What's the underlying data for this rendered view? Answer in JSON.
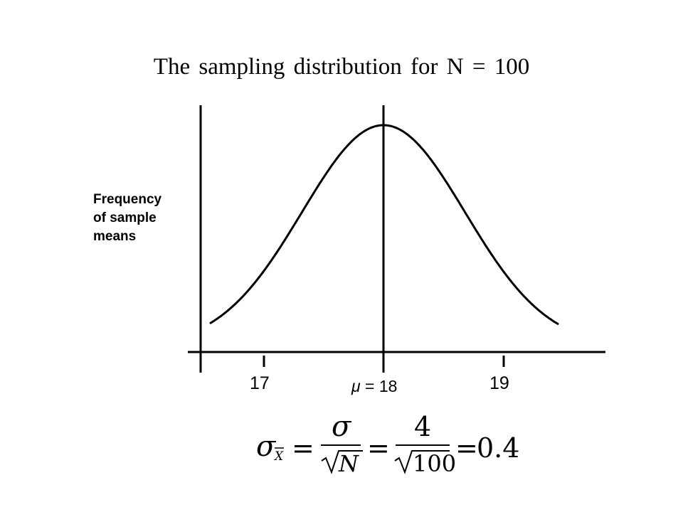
{
  "title": "The sampling distribution for N = 100",
  "y_axis_label": [
    "Frequency",
    "of sample",
    "means"
  ],
  "x_ticks": {
    "left": "17",
    "center": "18",
    "right": "19"
  },
  "mean_label": {
    "symbol": "μ",
    "equals": " = ",
    "value": "18"
  },
  "formula": {
    "lhs_symbol": "σ",
    "lhs_subscript": "X",
    "numerator_1": "σ",
    "denominator_1": "N",
    "numerator_2": "4",
    "denominator_2": "100",
    "result": "0.4",
    "equals": "="
  },
  "curve": {
    "type": "normal",
    "mean": 18,
    "sd": 0.4,
    "color": "#000000"
  }
}
